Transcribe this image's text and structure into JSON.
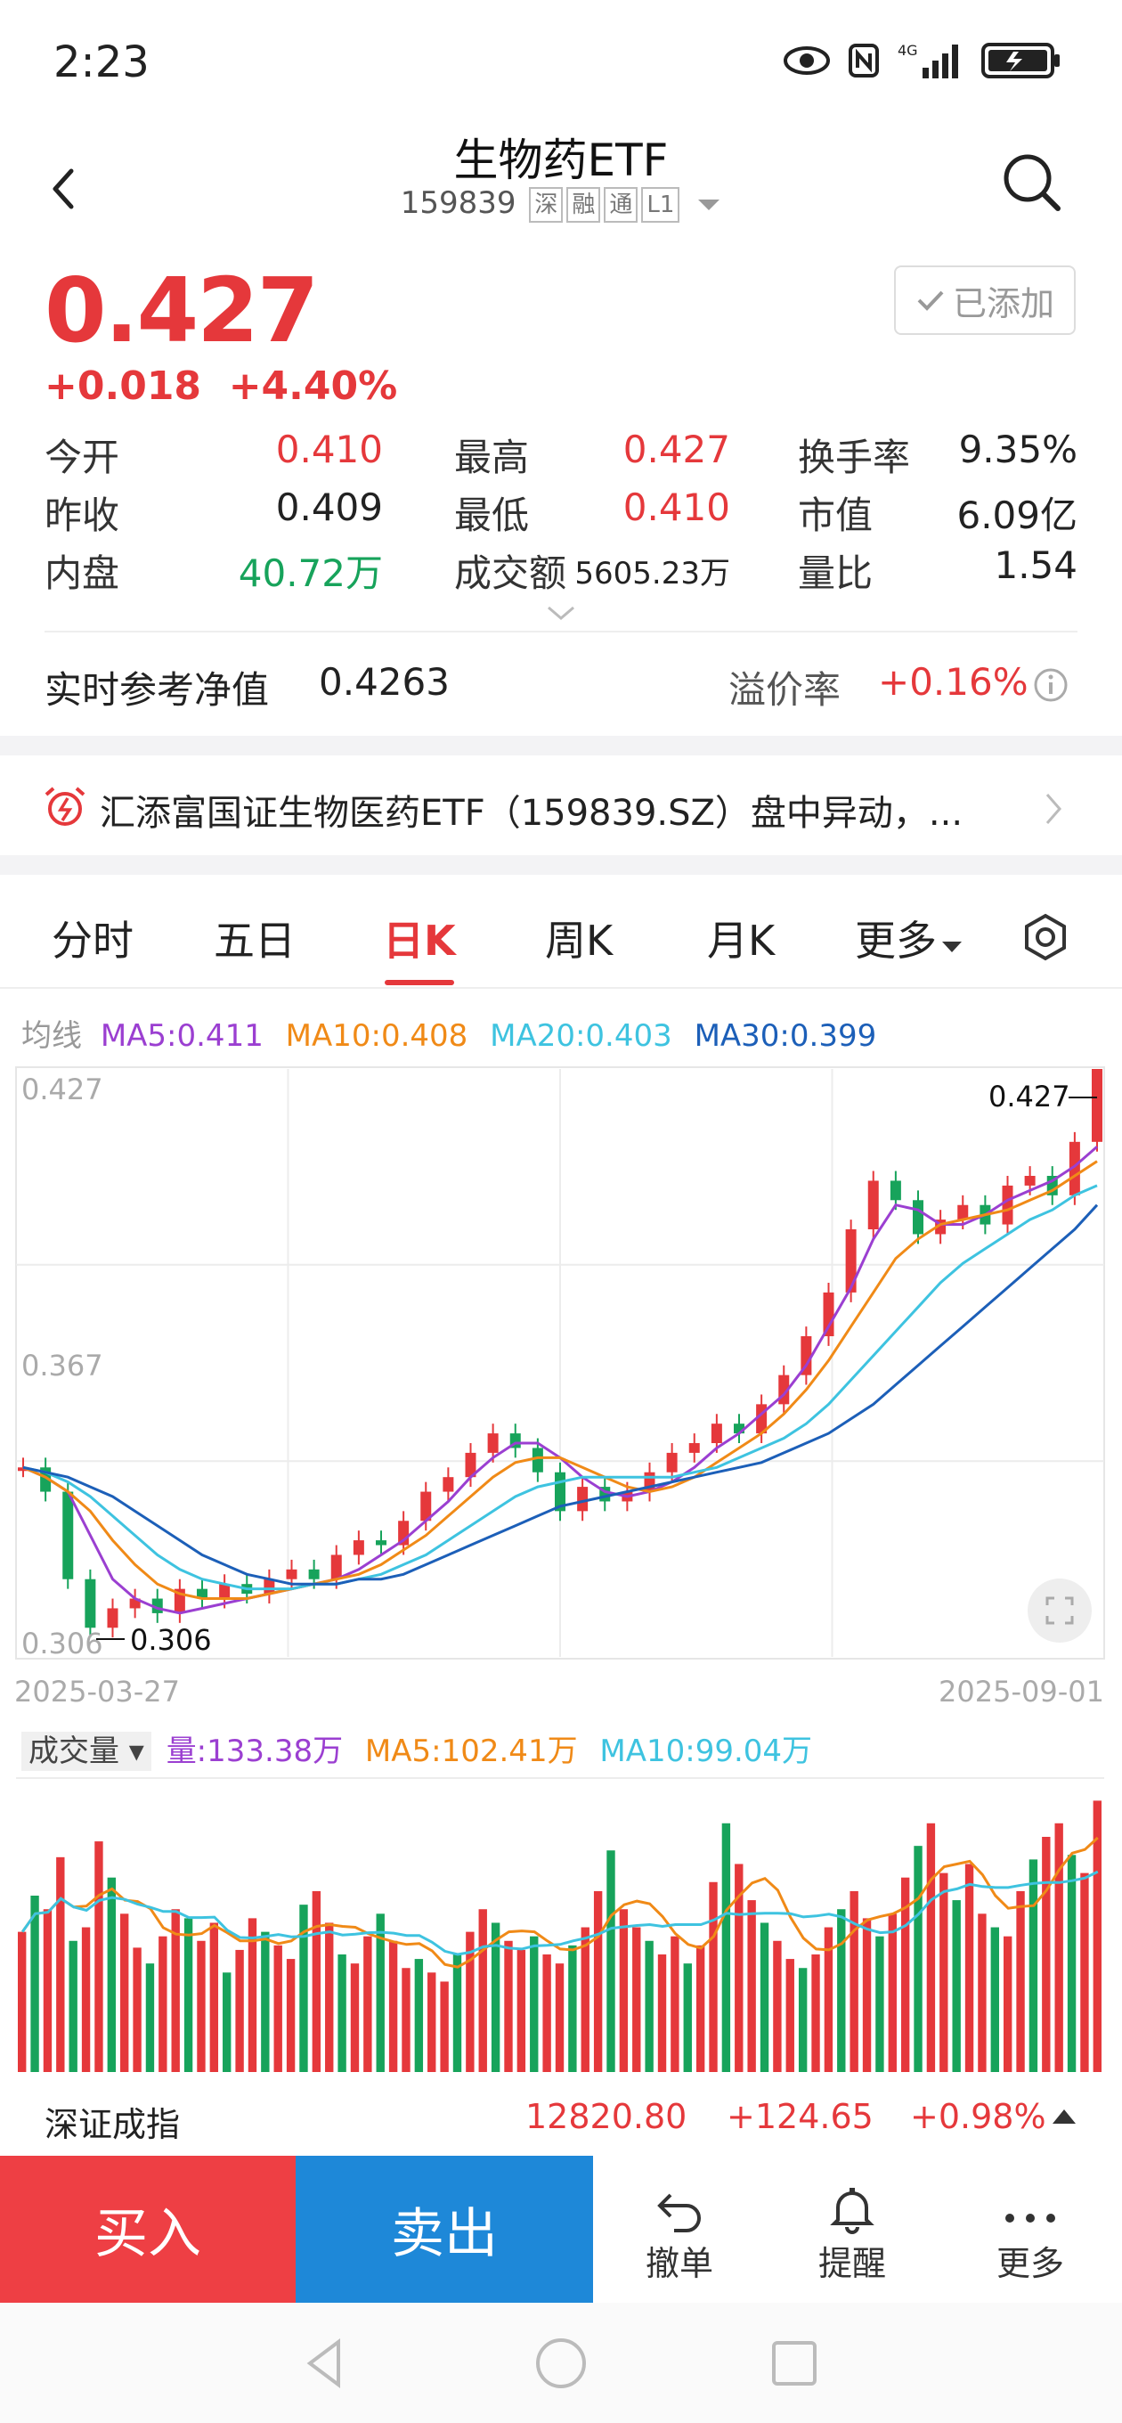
{
  "status_bar": {
    "time": "2:23",
    "network": "4G"
  },
  "header": {
    "title": "生物药ETF",
    "code": "159839",
    "tags": [
      "深",
      "融",
      "通",
      "L1"
    ]
  },
  "quote": {
    "price": "0.427",
    "change": "+0.018",
    "change_pct": "+4.40%",
    "added_label": "已添加"
  },
  "stats": [
    [
      {
        "label": "今开",
        "value": "0.410",
        "color": "red"
      },
      {
        "label": "最高",
        "value": "0.427",
        "color": "red"
      },
      {
        "label": "换手率",
        "value": "9.35%",
        "color": "black"
      }
    ],
    [
      {
        "label": "昨收",
        "value": "0.409",
        "color": "black"
      },
      {
        "label": "最低",
        "value": "0.410",
        "color": "red"
      },
      {
        "label": "市值",
        "value": "6.09亿",
        "color": "black"
      }
    ],
    [
      {
        "label": "内盘",
        "value": "40.72万",
        "color": "green"
      },
      {
        "label": "成交额",
        "value": "5605.23万",
        "color": "black"
      },
      {
        "label": "量比",
        "value": "1.54",
        "color": "black"
      }
    ]
  ],
  "nav": {
    "label": "实时参考净值",
    "value": "0.4263",
    "premium_label": "溢价率",
    "premium_value": "+0.16%"
  },
  "news": {
    "text": "汇添富国证生物医药ETF（159839.SZ）盘中异动，..."
  },
  "tabs": [
    "分时",
    "五日",
    "日K",
    "周K",
    "月K",
    "更多"
  ],
  "active_tab": "日K",
  "ma_legend": {
    "label": "均线",
    "ma5": "MA5:0.411",
    "ma10": "MA10:0.408",
    "ma20": "MA20:0.403",
    "ma30": "MA30:0.399"
  },
  "colors": {
    "up": "#e5383b",
    "down": "#17a35b",
    "ma5": "#9b3fd1",
    "ma10": "#f08a17",
    "ma20": "#3ec3e0",
    "ma30": "#1c5fb8"
  },
  "chart_data": {
    "type": "line",
    "price_axis_ticks": [
      "0.427",
      "0.367",
      "0.306"
    ],
    "ylim": [
      0.306,
      0.427
    ],
    "x_range_labels": [
      "2025-03-27",
      "2025-09-01"
    ],
    "high_label": "0.427",
    "low_label": "0.306",
    "grid": true,
    "series": [
      {
        "name": "MA5",
        "values": [
          0.345,
          0.343,
          0.34,
          0.331,
          0.322,
          0.318,
          0.316,
          0.315,
          0.316,
          0.317,
          0.318,
          0.319,
          0.32,
          0.321,
          0.322,
          0.324,
          0.327,
          0.33,
          0.334,
          0.338,
          0.343,
          0.347,
          0.35,
          0.35,
          0.347,
          0.343,
          0.34,
          0.339,
          0.34,
          0.342,
          0.345,
          0.349,
          0.352,
          0.356,
          0.36,
          0.366,
          0.374,
          0.382,
          0.392,
          0.399,
          0.398,
          0.395,
          0.395,
          0.397,
          0.4,
          0.402,
          0.404,
          0.407,
          0.411
        ]
      },
      {
        "name": "MA10",
        "values": [
          0.345,
          0.343,
          0.34,
          0.336,
          0.33,
          0.325,
          0.321,
          0.319,
          0.318,
          0.318,
          0.318,
          0.319,
          0.32,
          0.321,
          0.322,
          0.323,
          0.325,
          0.328,
          0.331,
          0.335,
          0.339,
          0.343,
          0.346,
          0.347,
          0.347,
          0.345,
          0.343,
          0.341,
          0.34,
          0.341,
          0.343,
          0.346,
          0.349,
          0.352,
          0.356,
          0.361,
          0.367,
          0.374,
          0.381,
          0.388,
          0.392,
          0.395,
          0.396,
          0.397,
          0.398,
          0.4,
          0.402,
          0.405,
          0.408
        ]
      },
      {
        "name": "MA20",
        "values": [
          0.345,
          0.344,
          0.342,
          0.339,
          0.335,
          0.331,
          0.327,
          0.324,
          0.322,
          0.321,
          0.32,
          0.32,
          0.32,
          0.321,
          0.321,
          0.322,
          0.323,
          0.325,
          0.327,
          0.33,
          0.333,
          0.336,
          0.339,
          0.341,
          0.342,
          0.343,
          0.343,
          0.343,
          0.343,
          0.343,
          0.344,
          0.345,
          0.347,
          0.349,
          0.351,
          0.354,
          0.358,
          0.363,
          0.368,
          0.373,
          0.378,
          0.383,
          0.387,
          0.39,
          0.393,
          0.396,
          0.398,
          0.401,
          0.403
        ]
      },
      {
        "name": "MA30",
        "values": [
          0.345,
          0.344,
          0.343,
          0.341,
          0.339,
          0.336,
          0.333,
          0.33,
          0.327,
          0.325,
          0.323,
          0.322,
          0.321,
          0.321,
          0.321,
          0.322,
          0.322,
          0.323,
          0.325,
          0.327,
          0.329,
          0.331,
          0.333,
          0.335,
          0.337,
          0.338,
          0.339,
          0.34,
          0.341,
          0.342,
          0.343,
          0.344,
          0.345,
          0.346,
          0.348,
          0.35,
          0.352,
          0.355,
          0.358,
          0.362,
          0.366,
          0.37,
          0.374,
          0.378,
          0.382,
          0.386,
          0.39,
          0.394,
          0.399
        ]
      }
    ],
    "candles": [
      0.345,
      0.34,
      0.322,
      0.312,
      0.316,
      0.318,
      0.315,
      0.32,
      0.318,
      0.321,
      0.319,
      0.322,
      0.324,
      0.322,
      0.327,
      0.33,
      0.329,
      0.334,
      0.34,
      0.343,
      0.348,
      0.352,
      0.349,
      0.344,
      0.336,
      0.341,
      0.338,
      0.34,
      0.344,
      0.348,
      0.35,
      0.354,
      0.352,
      0.358,
      0.364,
      0.372,
      0.381,
      0.394,
      0.404,
      0.4,
      0.393,
      0.396,
      0.399,
      0.395,
      0.403,
      0.405,
      0.401,
      0.412,
      0.427
    ]
  },
  "vol_legend": {
    "label": "成交量",
    "vol": "量:133.38万",
    "ma5": "MA5:102.41万",
    "ma10": "MA10:99.04万"
  },
  "volume_data": {
    "values": [
      62,
      78,
      72,
      95,
      58,
      64,
      102,
      86,
      70,
      55,
      48,
      60,
      72,
      68,
      58,
      66,
      44,
      54,
      68,
      62,
      56,
      50,
      74,
      80,
      66,
      52,
      48,
      60,
      70,
      58,
      46,
      50,
      44,
      40,
      52,
      62,
      72,
      66,
      58,
      54,
      60,
      52,
      48,
      56,
      64,
      80,
      98,
      72,
      64,
      58,
      52,
      60,
      48,
      56,
      84,
      110,
      92,
      76,
      66,
      58,
      50,
      46,
      52,
      64,
      72,
      80,
      68,
      60,
      70,
      86,
      100,
      110,
      88,
      76,
      92,
      70,
      64,
      60,
      80,
      94,
      104,
      110,
      96,
      88,
      120
    ],
    "ylim": [
      0,
      130
    ]
  },
  "index_bar": {
    "name": "深证成指",
    "value": "12820.80",
    "change": "+124.65",
    "change_pct": "+0.98%"
  },
  "bottom_bar": {
    "buy": "买入",
    "sell": "卖出",
    "actions": [
      {
        "label": "撤单",
        "icon": "undo-icon"
      },
      {
        "label": "提醒",
        "icon": "bell-icon"
      },
      {
        "label": "更多",
        "icon": "more-icon"
      }
    ]
  }
}
